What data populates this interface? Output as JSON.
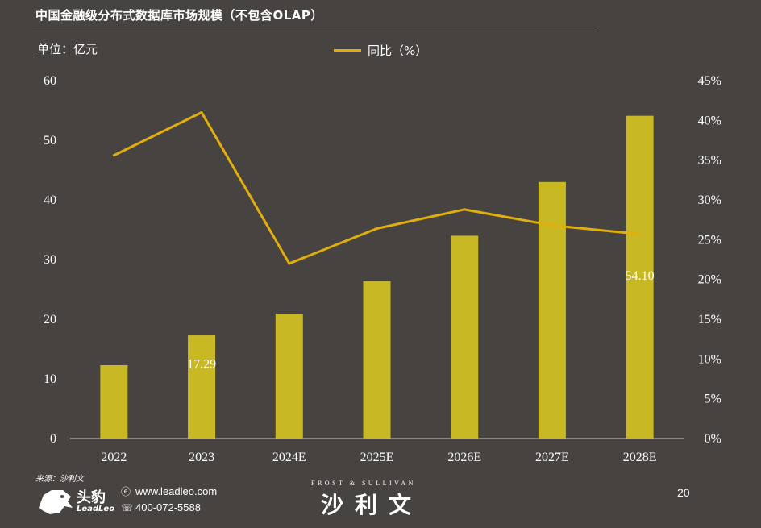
{
  "title": "中国金融级分布式数据库市场规模（不包含OLAP）",
  "unit_label": "单位：亿元",
  "legend": {
    "line_label": "同比（%）"
  },
  "colors": {
    "background": "#474341",
    "bar": "#c8b824",
    "line": "#e0ae0d"
  },
  "chart_data": {
    "type": "bar",
    "categories": [
      "2022",
      "2023",
      "2024E",
      "2025E",
      "2026E",
      "2027E",
      "2028E"
    ],
    "series": [
      {
        "values": [
          12.3,
          17.29,
          20.9,
          26.4,
          34.0,
          43.0,
          54.1
        ],
        "axis": "left",
        "kind": "bar"
      },
      {
        "name": "同比（%）",
        "values": [
          35.6,
          41.0,
          22.0,
          26.4,
          28.8,
          26.8,
          25.7
        ],
        "axis": "right",
        "kind": "line"
      }
    ],
    "data_labels": [
      {
        "category": "2023",
        "text": "17.29"
      },
      {
        "category": "2028E",
        "text": "54.10"
      }
    ],
    "ylim_left": [
      0,
      60
    ],
    "yticks_left": [
      "0",
      "10",
      "20",
      "30",
      "40",
      "50",
      "60"
    ],
    "ylim_right": [
      0,
      45
    ],
    "yticks_right": [
      "0%",
      "5%",
      "10%",
      "15%",
      "20%",
      "25%",
      "30%",
      "35%",
      "40%",
      "45%"
    ],
    "grid": false,
    "legend_position": "top-center"
  },
  "footer": {
    "source": "来源：沙利文",
    "logo_cn": "头豹",
    "logo_en": "LeadLeo",
    "website": "www.leadleo.com",
    "phone": "400-072-5588",
    "fs_en": "FROST & SULLIVAN",
    "fs_cn": "沙利文",
    "page_number": "20"
  }
}
